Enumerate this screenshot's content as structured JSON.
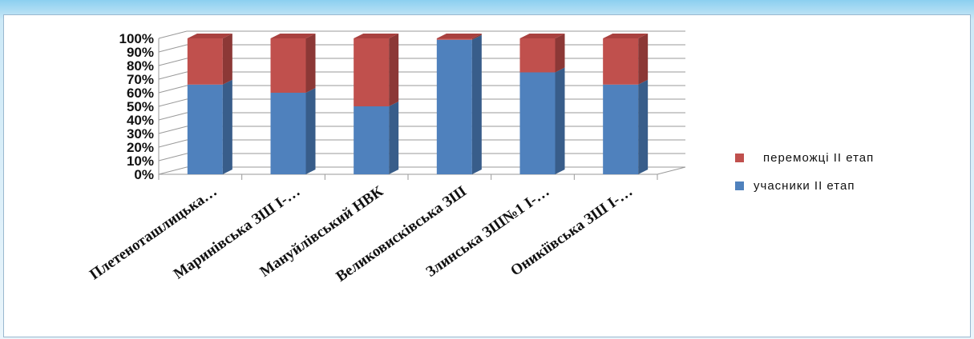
{
  "chart_data": {
    "type": "bar",
    "stacked": true,
    "percent": true,
    "three_d": true,
    "title": "",
    "xlabel": "",
    "ylabel": "",
    "ylim": [
      0,
      100
    ],
    "yticks": [
      "0%",
      "10%",
      "20%",
      "30%",
      "40%",
      "50%",
      "60%",
      "70%",
      "80%",
      "90%",
      "100%"
    ],
    "categories": [
      "Плетеноташлицька…",
      "Маринівська ЗШ І-…",
      "Мануйлівський НВК",
      "Великовисківська ЗШ",
      "Злинська ЗШ№1 І-…",
      "Оникіївська ЗШ І-…"
    ],
    "series": [
      {
        "name": "учасники ІІ етап",
        "color": "#4f81bd",
        "side": "#385d8a",
        "top": "#6a97d0",
        "values": [
          66,
          60,
          50,
          99,
          75,
          66
        ]
      },
      {
        "name": "переможці ІІ етап",
        "color": "#c0504d",
        "side": "#8c3836",
        "top": "#a9413f",
        "values": [
          34,
          40,
          50,
          1,
          25,
          34
        ]
      }
    ],
    "legend_position": "right",
    "grid": true
  }
}
